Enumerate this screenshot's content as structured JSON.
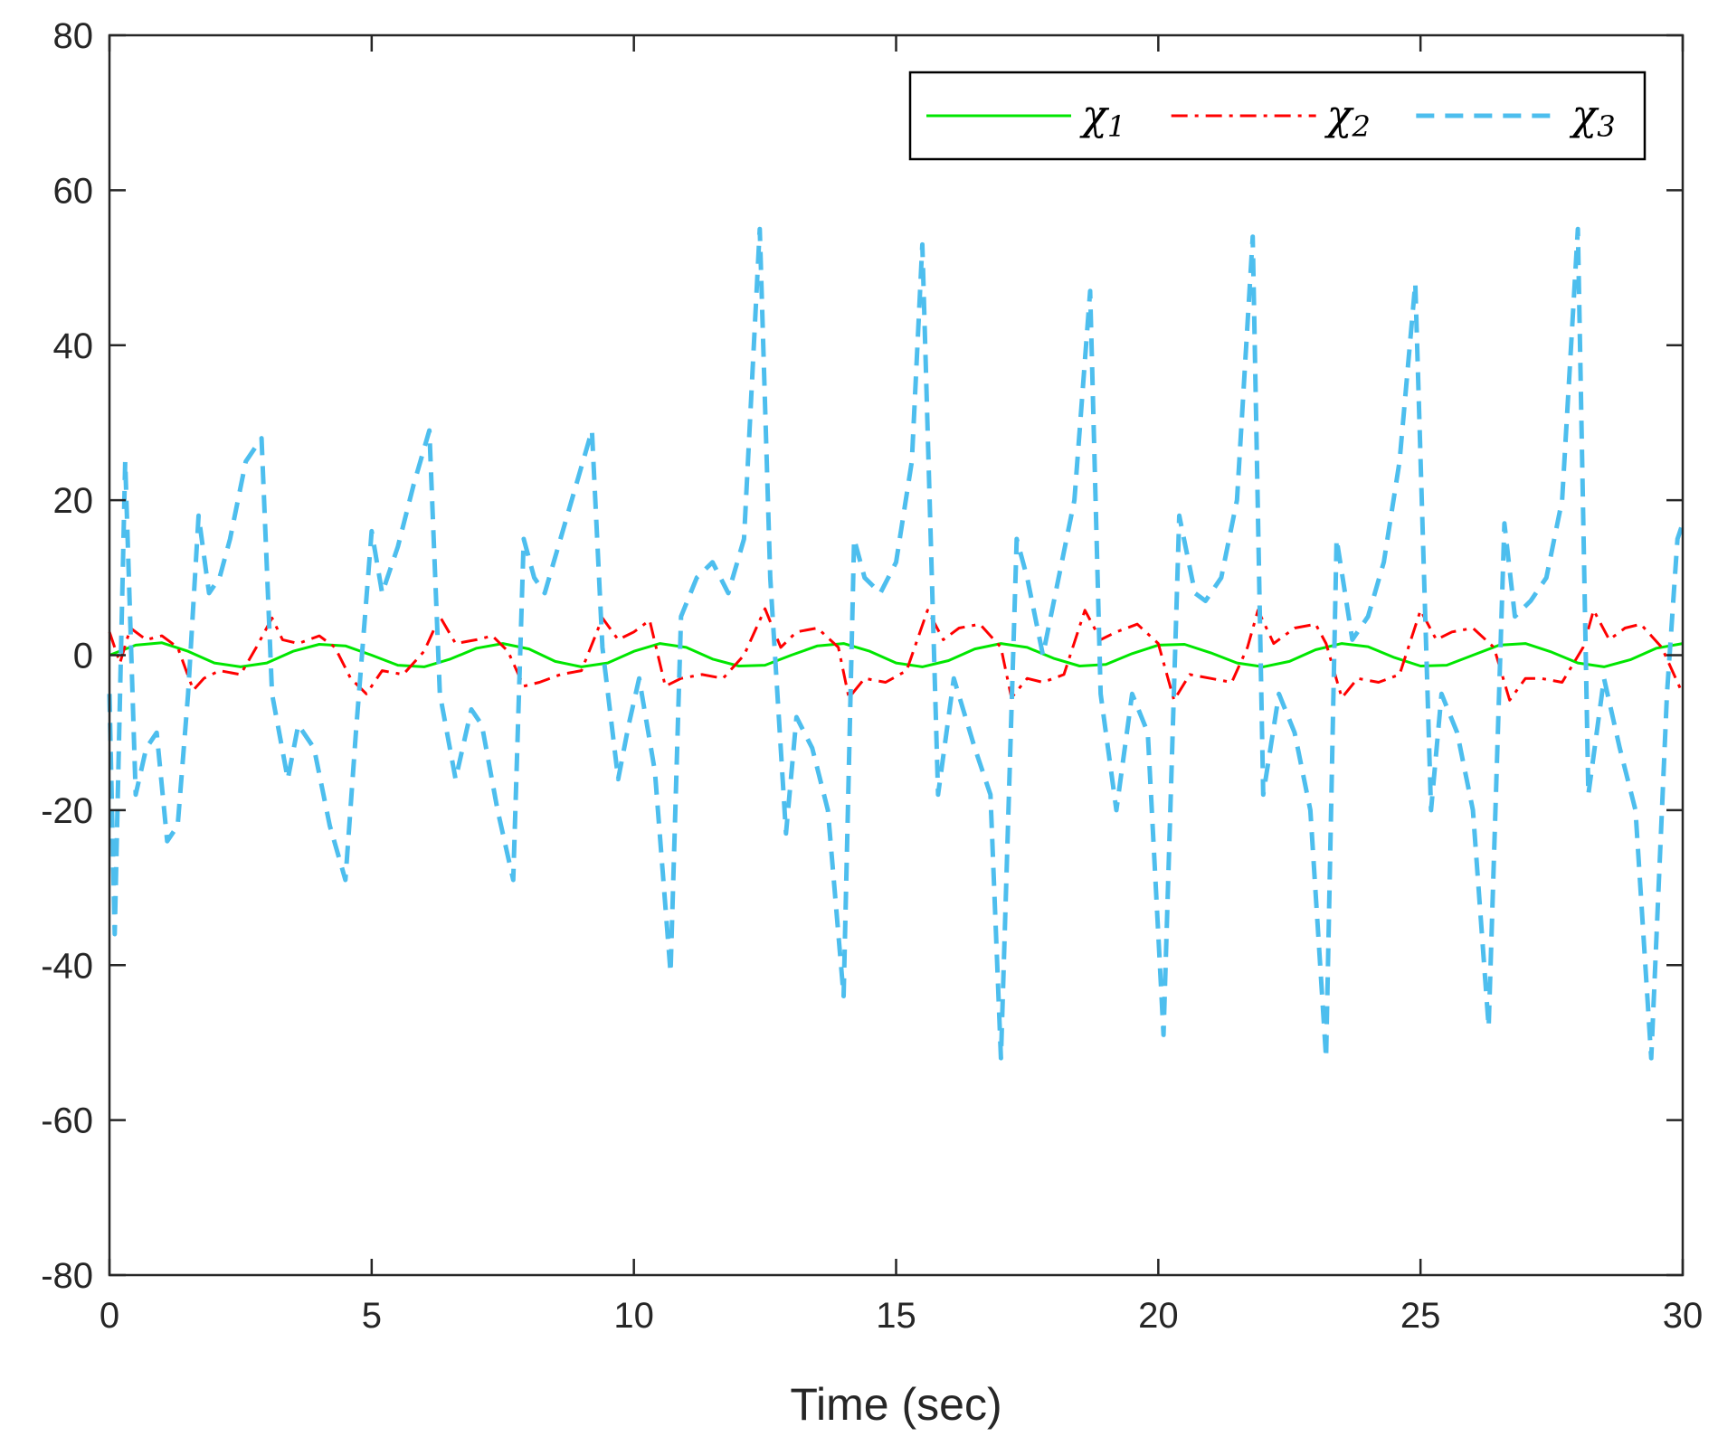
{
  "chart_data": {
    "type": "line",
    "title": "",
    "xlabel": "Time (sec)",
    "ylabel": "",
    "xlim": [
      0,
      30
    ],
    "ylim": [
      -80,
      80
    ],
    "xticks": [
      0,
      5,
      10,
      15,
      20,
      25,
      30
    ],
    "yticks": [
      -80,
      -60,
      -40,
      -20,
      0,
      20,
      40,
      60,
      80
    ],
    "xtick_labels": [
      "0",
      "5",
      "10",
      "15",
      "20",
      "25",
      "30"
    ],
    "ytick_labels": [
      "-80",
      "-60",
      "-40",
      "-20",
      "0",
      "20",
      "40",
      "60",
      "80"
    ],
    "grid": false,
    "legend_position": "top-right",
    "series": [
      {
        "name": "χ1",
        "symbol": "χ",
        "subscript": "1",
        "color": "#00e600",
        "style": "solid",
        "x": [
          0,
          0.5,
          1.0,
          1.5,
          2.0,
          2.5,
          3.0,
          3.5,
          4.0,
          4.5,
          5.0,
          5.5,
          6.0,
          6.5,
          7.0,
          7.5,
          8.0,
          8.5,
          9.0,
          9.5,
          10.0,
          10.5,
          11.0,
          11.5,
          12.0,
          12.5,
          13.0,
          13.5,
          14.0,
          14.5,
          15.0,
          15.5,
          16.0,
          16.5,
          17.0,
          17.5,
          18.0,
          18.5,
          19.0,
          19.5,
          20.0,
          20.5,
          21.0,
          21.5,
          22.0,
          22.5,
          23.0,
          23.5,
          24.0,
          24.5,
          25.0,
          25.5,
          26.0,
          26.5,
          27.0,
          27.5,
          28.0,
          28.5,
          29.0,
          29.5,
          30.0
        ],
        "y": [
          0.0,
          1.3,
          1.6,
          0.5,
          -1.0,
          -1.5,
          -1.0,
          0.5,
          1.4,
          1.2,
          0.0,
          -1.3,
          -1.5,
          -0.5,
          0.9,
          1.5,
          0.8,
          -0.8,
          -1.5,
          -1.0,
          0.5,
          1.5,
          1.0,
          -0.5,
          -1.4,
          -1.3,
          0.0,
          1.2,
          1.5,
          0.5,
          -1.0,
          -1.5,
          -0.7,
          0.8,
          1.5,
          1.0,
          -0.4,
          -1.4,
          -1.2,
          0.2,
          1.3,
          1.4,
          0.3,
          -1.0,
          -1.5,
          -0.8,
          0.7,
          1.5,
          1.1,
          -0.3,
          -1.4,
          -1.3,
          0.0,
          1.3,
          1.5,
          0.4,
          -1.0,
          -1.5,
          -0.6,
          0.9,
          1.5
        ]
      },
      {
        "name": "χ2",
        "symbol": "χ",
        "subscript": "2",
        "color": "#ff0000",
        "style": "dashdot",
        "x": [
          0,
          0.2,
          0.4,
          0.7,
          1.0,
          1.3,
          1.6,
          1.8,
          2.1,
          2.5,
          2.8,
          3.1,
          3.3,
          3.6,
          4.0,
          4.3,
          4.6,
          4.9,
          5.2,
          5.6,
          6.0,
          6.3,
          6.6,
          7.0,
          7.3,
          7.6,
          7.9,
          8.2,
          8.6,
          9.0,
          9.4,
          9.7,
          10.0,
          10.3,
          10.6,
          10.9,
          11.3,
          11.7,
          12.1,
          12.5,
          12.8,
          13.1,
          13.5,
          13.9,
          14.1,
          14.4,
          14.8,
          15.2,
          15.6,
          15.9,
          16.2,
          16.6,
          17.0,
          17.2,
          17.5,
          17.8,
          18.2,
          18.6,
          18.9,
          19.2,
          19.6,
          20.0,
          20.3,
          20.6,
          21.0,
          21.4,
          21.7,
          21.9,
          22.2,
          22.6,
          23.0,
          23.2,
          23.5,
          23.8,
          24.2,
          24.6,
          25.0,
          25.3,
          25.6,
          26.0,
          26.4,
          26.7,
          27.0,
          27.3,
          27.7,
          28.1,
          28.3,
          28.6,
          28.9,
          29.2,
          29.6,
          30.0
        ],
        "y": [
          3.0,
          -1.0,
          3.5,
          2.0,
          2.5,
          1.0,
          -4.5,
          -3.0,
          -2.0,
          -2.5,
          1.0,
          4.8,
          2.0,
          1.5,
          2.5,
          1.0,
          -3.0,
          -5.0,
          -2.0,
          -2.5,
          0.5,
          5.0,
          1.5,
          2.0,
          2.5,
          0.5,
          -4.0,
          -3.5,
          -2.5,
          -2.0,
          4.8,
          2.0,
          3.0,
          4.5,
          -4.0,
          -3.0,
          -2.5,
          -3.0,
          0.0,
          6.0,
          1.0,
          3.0,
          3.5,
          1.0,
          -5.5,
          -3.0,
          -3.5,
          -2.0,
          5.8,
          2.0,
          3.5,
          4.0,
          1.0,
          -5.5,
          -3.0,
          -3.5,
          -2.5,
          5.8,
          2.0,
          3.0,
          4.0,
          1.5,
          -5.8,
          -2.5,
          -3.0,
          -3.5,
          1.0,
          5.8,
          1.5,
          3.5,
          4.0,
          1.5,
          -5.5,
          -3.0,
          -3.5,
          -2.5,
          5.8,
          2.0,
          3.0,
          3.5,
          1.0,
          -5.8,
          -3.0,
          -3.0,
          -3.5,
          1.0,
          5.8,
          2.0,
          3.5,
          4.0,
          1.0,
          -5.0
        ]
      },
      {
        "name": "χ3",
        "symbol": "χ",
        "subscript": "3",
        "color": "#4dbeee",
        "style": "dashed",
        "x": [
          0,
          0.1,
          0.3,
          0.5,
          0.7,
          0.9,
          1.1,
          1.3,
          1.5,
          1.7,
          1.9,
          2.1,
          2.3,
          2.6,
          2.9,
          3.1,
          3.4,
          3.6,
          3.9,
          4.2,
          4.5,
          4.7,
          5.0,
          5.2,
          5.5,
          5.8,
          6.1,
          6.3,
          6.6,
          6.9,
          7.1,
          7.4,
          7.7,
          7.9,
          8.1,
          8.3,
          8.6,
          8.9,
          9.2,
          9.4,
          9.7,
          9.9,
          10.1,
          10.4,
          10.7,
          10.9,
          11.2,
          11.5,
          11.8,
          12.1,
          12.4,
          12.6,
          12.9,
          13.1,
          13.4,
          13.7,
          14.0,
          14.2,
          14.4,
          14.7,
          15.0,
          15.3,
          15.5,
          15.8,
          16.1,
          16.5,
          16.8,
          17.0,
          17.3,
          17.5,
          17.8,
          18.1,
          18.4,
          18.7,
          18.9,
          19.2,
          19.5,
          19.8,
          20.1,
          20.4,
          20.7,
          20.9,
          21.2,
          21.5,
          21.8,
          22.0,
          22.3,
          22.6,
          22.9,
          23.2,
          23.4,
          23.7,
          24.0,
          24.3,
          24.6,
          24.9,
          25.2,
          25.4,
          25.7,
          26.0,
          26.3,
          26.6,
          26.8,
          27.1,
          27.4,
          27.7,
          28.0,
          28.2,
          28.5,
          28.8,
          29.1,
          29.4,
          29.7,
          29.9,
          30.0
        ],
        "y": [
          -5.0,
          -36.0,
          25.0,
          -18.0,
          -12.0,
          -10.0,
          -24.0,
          -22.0,
          -5.0,
          18.0,
          8.0,
          10.0,
          15.0,
          25.0,
          28.0,
          -5.0,
          -16.0,
          -9.0,
          -12.0,
          -22.0,
          -29.0,
          -10.0,
          16.0,
          8.0,
          14.0,
          22.0,
          29.0,
          -5.0,
          -16.0,
          -7.0,
          -9.0,
          -20.0,
          -29.0,
          15.0,
          10.0,
          8.0,
          15.0,
          22.0,
          29.0,
          1.0,
          -16.0,
          -9.0,
          -3.0,
          -15.0,
          -41.0,
          5.0,
          10.0,
          12.0,
          8.0,
          15.0,
          55.0,
          10.0,
          -23.0,
          -8.0,
          -12.0,
          -20.0,
          -44.0,
          15.0,
          10.0,
          8.0,
          12.0,
          25.0,
          53.0,
          -18.0,
          -3.0,
          -12.0,
          -18.0,
          -52.0,
          15.0,
          10.0,
          0.0,
          10.0,
          20.0,
          47.0,
          -5.0,
          -20.0,
          -5.0,
          -10.0,
          -49.0,
          18.0,
          8.0,
          7.0,
          10.0,
          20.0,
          54.0,
          -18.0,
          -5.0,
          -10.0,
          -20.0,
          -52.0,
          15.0,
          2.0,
          5.0,
          12.0,
          25.0,
          48.0,
          -20.0,
          -5.0,
          -10.0,
          -20.0,
          -48.0,
          17.0,
          5.0,
          7.0,
          10.0,
          20.0,
          55.0,
          -18.0,
          -3.0,
          -12.0,
          -20.0,
          -52.0,
          -5.0,
          15.0,
          17.0
        ]
      }
    ]
  }
}
